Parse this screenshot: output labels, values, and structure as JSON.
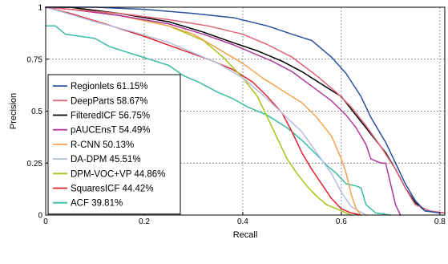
{
  "chart_data": {
    "type": "line",
    "title": "",
    "xlabel": "Recall",
    "ylabel": "Precision",
    "xlim": [
      0,
      0.81
    ],
    "ylim": [
      0,
      1
    ],
    "grid": true,
    "legend_position": "left",
    "x_ticks": [
      {
        "value": 0,
        "label": "0"
      },
      {
        "value": 0.2,
        "label": "0.2"
      },
      {
        "value": 0.4,
        "label": "0.4"
      },
      {
        "value": 0.6,
        "label": "0.6"
      },
      {
        "value": 0.8,
        "label": "0.8"
      }
    ],
    "y_ticks": [
      {
        "value": 0,
        "label": "0"
      },
      {
        "value": 0.25,
        "label": "0.25"
      },
      {
        "value": 0.5,
        "label": "0.5"
      },
      {
        "value": 0.75,
        "label": "0.75"
      },
      {
        "value": 1,
        "label": "1"
      }
    ],
    "series": [
      {
        "name": "Regionlets 61.15%",
        "color": "#2a4fa0",
        "points": [
          [
            0,
            1
          ],
          [
            0.05,
            1
          ],
          [
            0.1,
            1
          ],
          [
            0.2,
            0.99
          ],
          [
            0.3,
            0.97
          ],
          [
            0.38,
            0.95
          ],
          [
            0.45,
            0.91
          ],
          [
            0.5,
            0.87
          ],
          [
            0.54,
            0.84
          ],
          [
            0.58,
            0.76
          ],
          [
            0.61,
            0.68
          ],
          [
            0.64,
            0.57
          ],
          [
            0.66,
            0.47
          ],
          [
            0.69,
            0.35
          ],
          [
            0.71,
            0.25
          ],
          [
            0.73,
            0.15
          ],
          [
            0.75,
            0.07
          ],
          [
            0.77,
            0.02
          ],
          [
            0.8,
            0.01
          ]
        ]
      },
      {
        "name": "DeepParts 58.67%",
        "color": "#e06377",
        "points": [
          [
            0,
            1
          ],
          [
            0.05,
            0.99
          ],
          [
            0.15,
            0.97
          ],
          [
            0.25,
            0.94
          ],
          [
            0.33,
            0.91
          ],
          [
            0.4,
            0.87
          ],
          [
            0.45,
            0.82
          ],
          [
            0.5,
            0.76
          ],
          [
            0.55,
            0.67
          ],
          [
            0.59,
            0.59
          ],
          [
            0.62,
            0.52
          ],
          [
            0.65,
            0.43
          ],
          [
            0.68,
            0.33
          ],
          [
            0.71,
            0.22
          ],
          [
            0.73,
            0.13
          ],
          [
            0.75,
            0.05
          ],
          [
            0.78,
            0.02
          ],
          [
            0.81,
            0.01
          ]
        ]
      },
      {
        "name": "FilteredICF 56.75%",
        "color": "#000000",
        "points": [
          [
            0,
            1
          ],
          [
            0.05,
            1
          ],
          [
            0.15,
            0.97
          ],
          [
            0.25,
            0.93
          ],
          [
            0.32,
            0.88
          ],
          [
            0.38,
            0.83
          ],
          [
            0.43,
            0.79
          ],
          [
            0.48,
            0.74
          ],
          [
            0.52,
            0.69
          ],
          [
            0.56,
            0.63
          ],
          [
            0.6,
            0.57
          ],
          [
            0.63,
            0.48
          ],
          [
            0.66,
            0.39
          ],
          [
            0.69,
            0.3
          ],
          [
            0.71,
            0.22
          ],
          [
            0.73,
            0.13
          ],
          [
            0.75,
            0.06
          ],
          [
            0.77,
            0.02
          ],
          [
            0.81,
            0.01
          ]
        ]
      },
      {
        "name": "pAUCEnsT 54.49%",
        "color": "#b0399b",
        "points": [
          [
            0,
            1
          ],
          [
            0.05,
            0.99
          ],
          [
            0.15,
            0.96
          ],
          [
            0.25,
            0.92
          ],
          [
            0.32,
            0.87
          ],
          [
            0.38,
            0.82
          ],
          [
            0.42,
            0.78
          ],
          [
            0.46,
            0.74
          ],
          [
            0.5,
            0.69
          ],
          [
            0.54,
            0.62
          ],
          [
            0.58,
            0.55
          ],
          [
            0.61,
            0.48
          ],
          [
            0.63,
            0.42
          ],
          [
            0.65,
            0.34
          ],
          [
            0.66,
            0.27
          ],
          [
            0.68,
            0.25
          ],
          [
            0.69,
            0.25
          ],
          [
            0.7,
            0.15
          ],
          [
            0.71,
            0.05
          ],
          [
            0.72,
            0.0
          ]
        ]
      },
      {
        "name": "R-CNN 50.13%",
        "color": "#f4a24d",
        "points": [
          [
            0,
            1
          ],
          [
            0.05,
            0.99
          ],
          [
            0.15,
            0.96
          ],
          [
            0.25,
            0.91
          ],
          [
            0.3,
            0.87
          ],
          [
            0.35,
            0.8
          ],
          [
            0.4,
            0.73
          ],
          [
            0.44,
            0.66
          ],
          [
            0.48,
            0.6
          ],
          [
            0.52,
            0.54
          ],
          [
            0.55,
            0.47
          ],
          [
            0.58,
            0.38
          ],
          [
            0.6,
            0.27
          ],
          [
            0.61,
            0.2
          ],
          [
            0.62,
            0.1
          ],
          [
            0.63,
            0.03
          ],
          [
            0.64,
            0.0
          ]
        ]
      },
      {
        "name": "DA-DPM 45.51%",
        "color": "#b4bfe0",
        "points": [
          [
            0,
            1
          ],
          [
            0.03,
            0.98
          ],
          [
            0.1,
            0.93
          ],
          [
            0.18,
            0.88
          ],
          [
            0.25,
            0.83
          ],
          [
            0.3,
            0.78
          ],
          [
            0.35,
            0.73
          ],
          [
            0.4,
            0.66
          ],
          [
            0.44,
            0.58
          ],
          [
            0.48,
            0.49
          ],
          [
            0.52,
            0.4
          ],
          [
            0.55,
            0.3
          ],
          [
            0.58,
            0.2
          ],
          [
            0.6,
            0.11
          ],
          [
            0.62,
            0.04
          ],
          [
            0.65,
            0.0
          ]
        ]
      },
      {
        "name": "DPM-VOC+VP 44.86%",
        "color": "#a9c21b",
        "points": [
          [
            0,
            1
          ],
          [
            0.05,
            1
          ],
          [
            0.15,
            0.96
          ],
          [
            0.25,
            0.91
          ],
          [
            0.32,
            0.84
          ],
          [
            0.36,
            0.76
          ],
          [
            0.4,
            0.66
          ],
          [
            0.43,
            0.57
          ],
          [
            0.45,
            0.47
          ],
          [
            0.47,
            0.37
          ],
          [
            0.49,
            0.27
          ],
          [
            0.51,
            0.2
          ],
          [
            0.53,
            0.14
          ],
          [
            0.55,
            0.09
          ],
          [
            0.57,
            0.05
          ],
          [
            0.6,
            0.02
          ],
          [
            0.62,
            0.0
          ]
        ]
      },
      {
        "name": "SquaresICF 44.42%",
        "color": "#e0222b",
        "points": [
          [
            0,
            1
          ],
          [
            0.05,
            0.97
          ],
          [
            0.12,
            0.92
          ],
          [
            0.2,
            0.86
          ],
          [
            0.27,
            0.8
          ],
          [
            0.33,
            0.75
          ],
          [
            0.38,
            0.7
          ],
          [
            0.42,
            0.64
          ],
          [
            0.45,
            0.57
          ],
          [
            0.48,
            0.49
          ],
          [
            0.5,
            0.4
          ],
          [
            0.52,
            0.3
          ],
          [
            0.54,
            0.22
          ],
          [
            0.56,
            0.15
          ],
          [
            0.58,
            0.08
          ],
          [
            0.6,
            0.03
          ],
          [
            0.62,
            0.01
          ],
          [
            0.64,
            0.0
          ]
        ]
      },
      {
        "name": "ACF 39.81%",
        "color": "#3bbca4",
        "points": [
          [
            0,
            0.91
          ],
          [
            0.02,
            0.91
          ],
          [
            0.04,
            0.87
          ],
          [
            0.07,
            0.86
          ],
          [
            0.1,
            0.85
          ],
          [
            0.13,
            0.81
          ],
          [
            0.17,
            0.78
          ],
          [
            0.21,
            0.75
          ],
          [
            0.25,
            0.72
          ],
          [
            0.28,
            0.67
          ],
          [
            0.31,
            0.64
          ],
          [
            0.35,
            0.59
          ],
          [
            0.38,
            0.56
          ],
          [
            0.41,
            0.52
          ],
          [
            0.45,
            0.48
          ],
          [
            0.49,
            0.42
          ],
          [
            0.52,
            0.36
          ],
          [
            0.55,
            0.29
          ],
          [
            0.57,
            0.24
          ],
          [
            0.59,
            0.2
          ],
          [
            0.61,
            0.15
          ],
          [
            0.63,
            0.14
          ],
          [
            0.64,
            0.13
          ],
          [
            0.65,
            0.05
          ],
          [
            0.67,
            0.01
          ],
          [
            0.7,
            0.0
          ]
        ]
      }
    ]
  }
}
